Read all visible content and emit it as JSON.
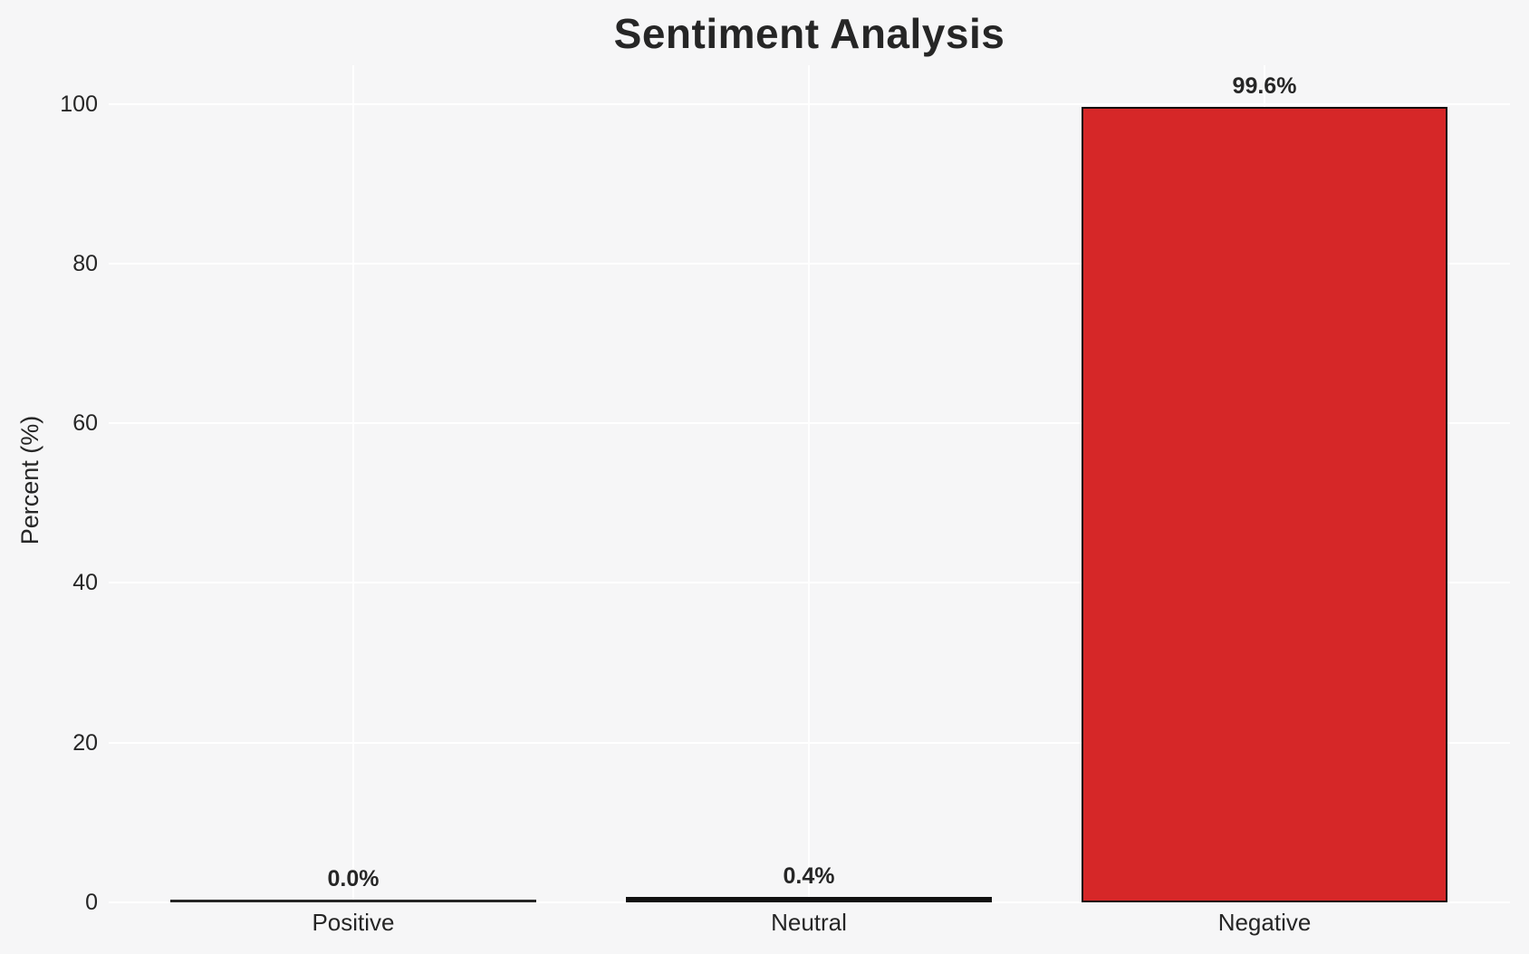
{
  "chart_data": {
    "type": "bar",
    "title": "Sentiment Analysis",
    "ylabel": "Percent (%)",
    "xlabel": "",
    "categories": [
      "Positive",
      "Neutral",
      "Negative"
    ],
    "values": [
      0.0,
      0.4,
      99.6
    ],
    "value_labels": [
      "0.0%",
      "0.4%",
      "99.6%"
    ],
    "yticks": [
      0,
      20,
      40,
      60,
      80,
      100
    ],
    "ytick_labels": [
      "0",
      "20",
      "40",
      "60",
      "80",
      "100"
    ],
    "ylim": [
      0,
      105
    ],
    "grid": "white gridlines, horizontal and vertical, on light gray background",
    "legend": "none",
    "colors": {
      "background": "#f6f6f7",
      "gridline": "#ffffff",
      "text": "#262626",
      "bar_fills_visible": [
        "#262626",
        "#111111",
        "#d62728"
      ],
      "bar_edge": "#0d0d0d"
    }
  }
}
